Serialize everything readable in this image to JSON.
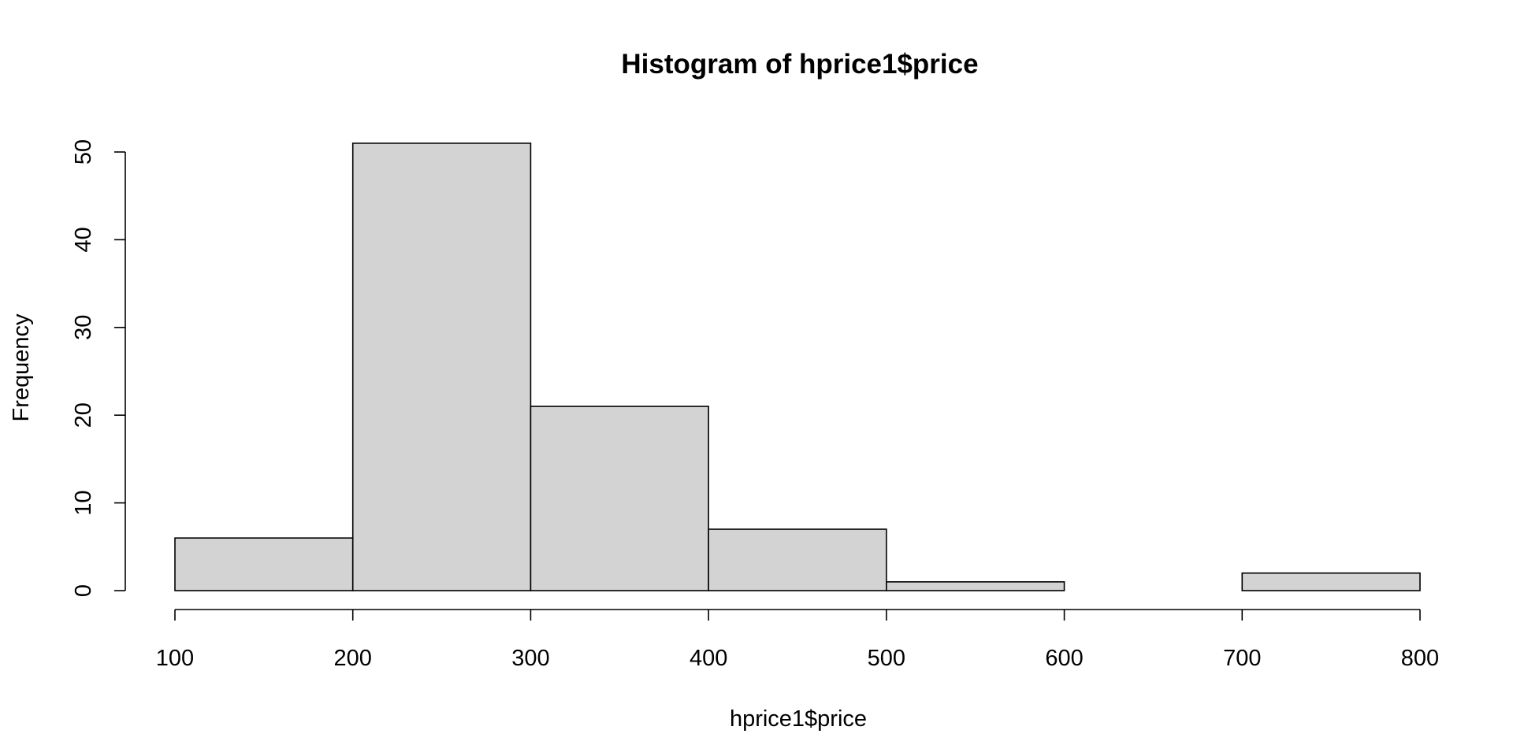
{
  "chart_data": {
    "type": "bar",
    "histogram": true,
    "title": "Histogram of hprice1$price",
    "xlabel": "hprice1$price",
    "ylabel": "Frequency",
    "bins": [
      {
        "from": 100,
        "to": 200,
        "count": 6
      },
      {
        "from": 200,
        "to": 300,
        "count": 51
      },
      {
        "from": 300,
        "to": 400,
        "count": 21
      },
      {
        "from": 400,
        "to": 500,
        "count": 7
      },
      {
        "from": 500,
        "to": 600,
        "count": 1
      },
      {
        "from": 600,
        "to": 700,
        "count": 0
      },
      {
        "from": 700,
        "to": 800,
        "count": 2
      }
    ],
    "categories": [
      "100-200",
      "200-300",
      "300-400",
      "400-500",
      "500-600",
      "600-700",
      "700-800"
    ],
    "values": [
      6,
      51,
      21,
      7,
      1,
      0,
      2
    ],
    "xlim": [
      100,
      800
    ],
    "ylim": [
      0,
      50
    ],
    "x_ticks": [
      100,
      200,
      300,
      400,
      500,
      600,
      700,
      800
    ],
    "y_ticks": [
      0,
      10,
      20,
      30,
      40,
      50
    ],
    "bar_color": "#d3d3d3",
    "border_color": "#000000",
    "grid": false,
    "legend": "none"
  }
}
